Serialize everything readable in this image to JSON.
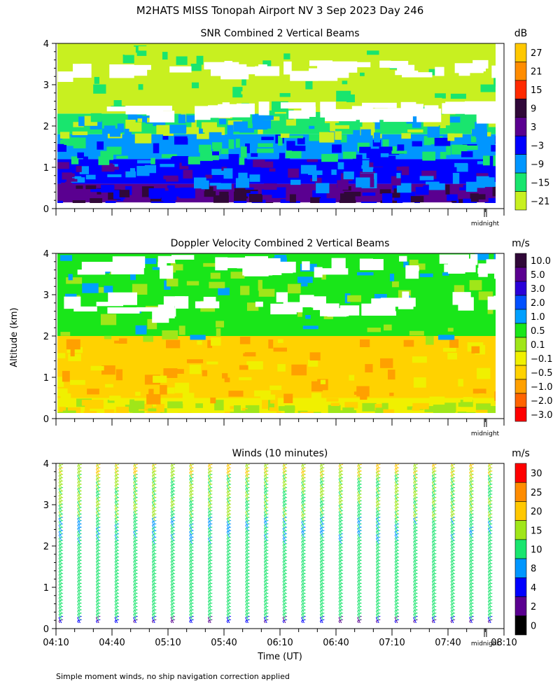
{
  "page": {
    "title": "M2HATS MISS Tonopah Airport NV   3 Sep 2023 Day 246",
    "ylabel": "Altitude (km)",
    "xlabel": "Time (UT)",
    "footnote": "Simple moment winds, no ship navigation correction applied",
    "midnight_label": "midnight"
  },
  "chart_data": [
    {
      "type": "heatmap",
      "title": "SNR Combined 2 Vertical Beams",
      "unit": "dB",
      "ylabel": "Altitude (km)",
      "ylim": [
        0,
        4
      ],
      "yticks": [
        "0",
        "1",
        "2",
        "3",
        "4"
      ],
      "colorbar_labels": [
        "27",
        "21",
        "15",
        "9",
        "3",
        "−3",
        "−9",
        "−15",
        "−21"
      ],
      "colorbar_colors": [
        "#ffc800",
        "#ff8c00",
        "#ff2a00",
        "#300838",
        "#5a0090",
        "#0000ff",
        "#0096ff",
        "#19e56e",
        "#c8f020"
      ],
      "layers": [
        {
          "alt_km": [
            0.15,
            0.6
          ],
          "level": "3 to 9 dB"
        },
        {
          "alt_km": [
            0.6,
            1.2
          ],
          "level": "-3 to 3 dB"
        },
        {
          "alt_km": [
            1.2,
            1.8
          ],
          "level": "-9 to -3 dB"
        },
        {
          "alt_km": [
            1.8,
            2.3
          ],
          "level": "-15 to -9 dB"
        },
        {
          "alt_km": [
            2.3,
            4.0
          ],
          "level": "-21 to -15 dB"
        }
      ]
    },
    {
      "type": "heatmap",
      "title": "Doppler Velocity Combined 2 Vertical Beams",
      "unit": "m/s",
      "ylabel": "Altitude (km)",
      "ylim": [
        0,
        4
      ],
      "yticks": [
        "0",
        "1",
        "2",
        "3",
        "4"
      ],
      "colorbar_labels": [
        "10.0",
        "5.0",
        "3.0",
        "2.0",
        "1.0",
        "0.5",
        "0.1",
        "−0.1",
        "−0.5",
        "−1.0",
        "−2.0",
        "−3.0"
      ],
      "colorbar_colors": [
        "#300838",
        "#5a0090",
        "#2a00d8",
        "#0050ff",
        "#00a0ff",
        "#19e619",
        "#a0e619",
        "#f0f000",
        "#ffd200",
        "#ffa000",
        "#ff6400",
        "#ff0000"
      ],
      "layers": [
        {
          "alt_km": [
            0.1,
            0.5
          ],
          "level": "-0.1 to 0.1 m/s"
        },
        {
          "alt_km": [
            0.5,
            2.0
          ],
          "level": "-1.0 to -0.1 m/s"
        },
        {
          "alt_km": [
            2.0,
            4.0
          ],
          "level": "0.5 to 2.0 m/s"
        }
      ]
    },
    {
      "type": "scatter",
      "title": "Winds (10 minutes)",
      "unit": "m/s",
      "ylabel": "Altitude (km)",
      "xlabel": "Time (UT)",
      "ylim": [
        0,
        4
      ],
      "yticks": [
        "0",
        "1",
        "2",
        "3",
        "4"
      ],
      "x_tick_labels": [
        "04:10",
        "04:40",
        "05:10",
        "05:40",
        "06:10",
        "06:40",
        "07:10",
        "07:40",
        "08:10"
      ],
      "xlim": [
        "04:10",
        "08:10"
      ],
      "colorbar_labels": [
        "30",
        "25",
        "20",
        "15",
        "10",
        "8",
        "4",
        "2",
        "0"
      ],
      "colorbar_colors": [
        "#ff0000",
        "#ff8c00",
        "#ffc800",
        "#a0e619",
        "#19e56e",
        "#0096ff",
        "#0000ff",
        "#5a0090",
        "#000000"
      ],
      "profile_times": [
        "04:13",
        "04:23",
        "04:33",
        "04:43",
        "04:53",
        "05:03",
        "05:13",
        "05:23",
        "05:33",
        "05:43",
        "05:53",
        "06:03",
        "06:13",
        "06:23",
        "06:33",
        "06:43",
        "06:53",
        "07:03",
        "07:13",
        "07:23",
        "07:33",
        "07:43",
        "07:53",
        "08:03"
      ],
      "wind_layers": [
        {
          "alt_km": [
            0.0,
            0.2
          ],
          "speed_ms": 4
        },
        {
          "alt_km": [
            0.2,
            2.0
          ],
          "speed_ms": 13
        },
        {
          "alt_km": [
            2.0,
            2.6
          ],
          "speed_ms": 10
        },
        {
          "alt_km": [
            2.6,
            3.6
          ],
          "speed_ms": 15
        },
        {
          "alt_km": [
            3.6,
            4.0
          ],
          "speed_ms": 20
        }
      ]
    }
  ]
}
